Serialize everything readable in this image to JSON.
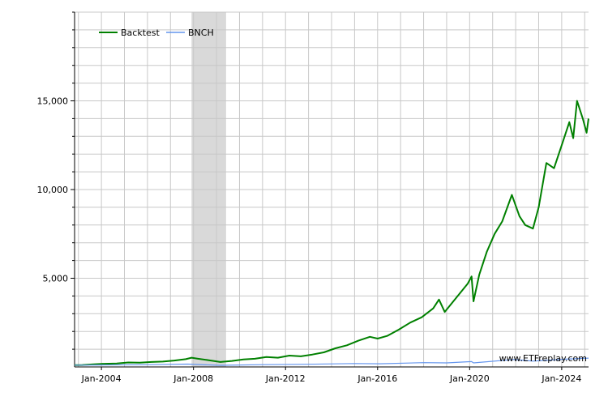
{
  "chart_data": {
    "type": "line",
    "title": "",
    "xlabel": "",
    "ylabel": "",
    "x_ticks": [
      "Jan-2004",
      "Jan-2008",
      "Jan-2012",
      "Jan-2016",
      "Jan-2020",
      "Jan-2024"
    ],
    "y_ticks": [
      "5,000",
      "10,000",
      "15,000"
    ],
    "y_tick_values": [
      5000,
      10000,
      15000
    ],
    "xlim": [
      "2002-11",
      "2025-03"
    ],
    "ylim": [
      0,
      20000
    ],
    "grid": true,
    "legend_position": "top-left",
    "recession_band": {
      "start": "2007-12",
      "end": "2009-06",
      "color": "#d9d9d9"
    },
    "series": [
      {
        "name": "Backtest",
        "color": "#008000",
        "points": [
          [
            "2002-11",
            100
          ],
          [
            "2003-03",
            110
          ],
          [
            "2003-09",
            150
          ],
          [
            "2004-03",
            180
          ],
          [
            "2004-09",
            190
          ],
          [
            "2005-03",
            250
          ],
          [
            "2005-09",
            240
          ],
          [
            "2006-03",
            280
          ],
          [
            "2006-09",
            300
          ],
          [
            "2007-03",
            360
          ],
          [
            "2007-09",
            440
          ],
          [
            "2007-12",
            520
          ],
          [
            "2008-03",
            470
          ],
          [
            "2008-09",
            380
          ],
          [
            "2009-03",
            280
          ],
          [
            "2009-09",
            340
          ],
          [
            "2010-03",
            420
          ],
          [
            "2010-09",
            460
          ],
          [
            "2011-03",
            560
          ],
          [
            "2011-09",
            520
          ],
          [
            "2012-03",
            640
          ],
          [
            "2012-09",
            600
          ],
          [
            "2013-03",
            700
          ],
          [
            "2013-09",
            820
          ],
          [
            "2014-03",
            1050
          ],
          [
            "2014-09",
            1220
          ],
          [
            "2015-03",
            1480
          ],
          [
            "2015-09",
            1700
          ],
          [
            "2016-01",
            1600
          ],
          [
            "2016-06",
            1750
          ],
          [
            "2016-12",
            2100
          ],
          [
            "2017-06",
            2500
          ],
          [
            "2017-12",
            2800
          ],
          [
            "2018-06",
            3300
          ],
          [
            "2018-09",
            3800
          ],
          [
            "2018-12",
            3100
          ],
          [
            "2019-06",
            3900
          ],
          [
            "2019-12",
            4700
          ],
          [
            "2020-02",
            5100
          ],
          [
            "2020-03",
            3700
          ],
          [
            "2020-06",
            5200
          ],
          [
            "2020-10",
            6500
          ],
          [
            "2021-02",
            7500
          ],
          [
            "2021-06",
            8200
          ],
          [
            "2021-11",
            9700
          ],
          [
            "2022-03",
            8500
          ],
          [
            "2022-06",
            8000
          ],
          [
            "2022-10",
            7800
          ],
          [
            "2023-01",
            9000
          ],
          [
            "2023-05",
            11500
          ],
          [
            "2023-09",
            11200
          ],
          [
            "2024-01",
            12500
          ],
          [
            "2024-05",
            13800
          ],
          [
            "2024-07",
            12900
          ],
          [
            "2024-09",
            15000
          ],
          [
            "2024-12",
            14000
          ],
          [
            "2025-02",
            13200
          ],
          [
            "2025-03",
            14000
          ]
        ]
      },
      {
        "name": "BNCH",
        "color": "#6495ed",
        "points": [
          [
            "2002-11",
            100
          ],
          [
            "2004-01",
            110
          ],
          [
            "2006-01",
            130
          ],
          [
            "2007-10",
            160
          ],
          [
            "2009-03",
            90
          ],
          [
            "2011-01",
            130
          ],
          [
            "2013-01",
            150
          ],
          [
            "2015-01",
            190
          ],
          [
            "2016-02",
            180
          ],
          [
            "2018-01",
            240
          ],
          [
            "2019-01",
            230
          ],
          [
            "2020-02",
            300
          ],
          [
            "2020-03",
            230
          ],
          [
            "2021-12",
            420
          ],
          [
            "2022-10",
            330
          ],
          [
            "2024-01",
            430
          ],
          [
            "2025-03",
            500
          ]
        ]
      }
    ]
  },
  "legend": {
    "items": [
      "Backtest",
      "BNCH"
    ]
  },
  "watermark": "www.ETFreplay.com"
}
